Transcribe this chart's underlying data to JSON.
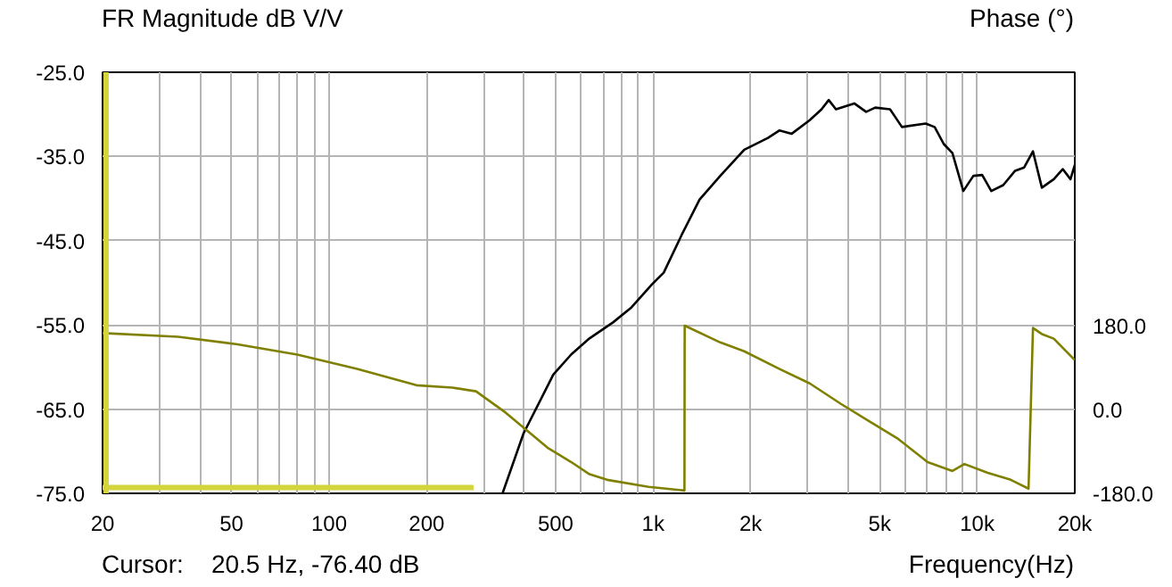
{
  "chart_data": {
    "type": "line",
    "ylabel": "FR Magnitude dB V/V",
    "y2label": "Phase (°)",
    "xlabel": "Frequency(Hz)",
    "annotations": [
      "Cursor:    20.5 Hz, -76.40 dB"
    ],
    "log": "x",
    "grid": true,
    "marker": "none",
    "line_style": "solid",
    "xlim": [
      20,
      20000
    ],
    "ylim": [
      -75,
      -25
    ],
    "y2lim": [
      -180,
      724
    ],
    "xticks": [
      20,
      {
        "value": 30,
        "label": null
      },
      {
        "value": 40,
        "label": null
      },
      50,
      {
        "value": 60,
        "label": null
      },
      {
        "value": 70,
        "label": null
      },
      {
        "value": 80,
        "label": null
      },
      {
        "value": 90,
        "label": null
      },
      100,
      200,
      {
        "value": 300,
        "label": null
      },
      {
        "value": 400,
        "label": null
      },
      500,
      {
        "value": 600,
        "label": null
      },
      {
        "value": 700,
        "label": null
      },
      {
        "value": 800,
        "label": null
      },
      {
        "value": 900,
        "label": null
      },
      {
        "value": 1000,
        "label": "1k"
      },
      {
        "value": 2000,
        "label": "2k"
      },
      {
        "value": 3000,
        "label": null
      },
      {
        "value": 4000,
        "label": null
      },
      {
        "value": 5000,
        "label": "5k"
      },
      {
        "value": 6000,
        "label": null
      },
      {
        "value": 7000,
        "label": null
      },
      {
        "value": 8000,
        "label": null
      },
      {
        "value": 9000,
        "label": null
      },
      {
        "value": 10000,
        "label": "10k"
      },
      {
        "value": 20000,
        "label": "20k"
      }
    ],
    "yticks": [
      {
        "value": -75,
        "label": "-75.0"
      },
      {
        "value": -65,
        "label": "-65.0"
      },
      {
        "value": -55,
        "label": "-55.0"
      },
      {
        "value": -45,
        "label": "-45.0"
      },
      {
        "value": -35,
        "label": "-35.0"
      },
      {
        "value": -25,
        "label": "-25.0"
      }
    ],
    "y2ticks": [
      {
        "value": -180,
        "label": "-180.0"
      },
      {
        "value": 0,
        "label": "0.0"
      },
      {
        "value": 180,
        "label": "180.0"
      }
    ],
    "ref_lines": [
      {
        "axis": "x",
        "value": 20.5,
        "color": "#d4d43c"
      }
    ],
    "series": [
      {
        "color": "#000000",
        "x": [
          343,
          398,
          492,
          559,
          636,
          752,
          853,
          991,
          1078,
          1225,
          1391,
          1611,
          1910,
          2260,
          2455,
          2677,
          3041,
          3309,
          3481,
          3665,
          4175,
          4541,
          4844,
          5382,
          5858,
          6935,
          7390,
          7878,
          8385,
          9060,
          9730,
          10360,
          11050,
          12030,
          13090,
          13960,
          14860,
          15830,
          17230,
          18360,
          19400,
          20000
        ],
        "values": [
          -75,
          -67.9,
          -60.9,
          -58.5,
          -56.6,
          -54.7,
          -53.0,
          -50.2,
          -48.8,
          -44.3,
          -40.1,
          -37.3,
          -34.2,
          -32.8,
          -31.9,
          -32.3,
          -30.7,
          -29.4,
          -28.3,
          -29.4,
          -28.7,
          -29.7,
          -29.2,
          -29.4,
          -31.5,
          -31.1,
          -31.5,
          -33.5,
          -34.6,
          -39.1,
          -37.3,
          -37.2,
          -39.1,
          -38.4,
          -36.7,
          -36.3,
          -34.4,
          -38.7,
          -37.7,
          -36.5,
          -37.7,
          -36.0
        ]
      },
      {
        "color": "#808000",
        "axis": "y2",
        "x": [
          20,
          34.2,
          52.2,
          79.8,
          122,
          186,
          240,
          284,
          351,
          472,
          559,
          636,
          721,
          968,
          1249,
          1251,
          1611,
          1910,
          2455,
          3041,
          3797,
          4662,
          5700,
          7030,
          8385,
          9130,
          10770,
          12690,
          14400,
          14860,
          15830,
          17230,
          20000
        ],
        "values": [
          164,
          156,
          140,
          118,
          87,
          52,
          47,
          39,
          -7,
          -82,
          -113,
          -139,
          -151,
          -166,
          -174,
          180,
          144,
          125,
          87,
          56,
          12,
          -26,
          -63,
          -113,
          -132,
          -117,
          -136,
          -151,
          -170,
          175,
          162,
          152,
          106
        ]
      },
      {
        "color": "#d4d43c",
        "x": [
          20,
          279
        ],
        "values": [
          -74.3,
          -74.3
        ]
      }
    ]
  }
}
